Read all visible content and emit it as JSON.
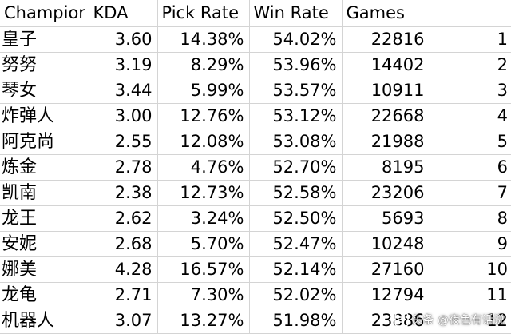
{
  "table": {
    "headers": [
      "Champior",
      "KDA",
      "Pick Rate",
      "Win Rate",
      "Games",
      ""
    ],
    "rows": [
      [
        "皇子",
        "3.60",
        "14.38%",
        "54.02%",
        "22816",
        "1"
      ],
      [
        "努努",
        "3.19",
        "8.29%",
        "53.96%",
        "14402",
        "2"
      ],
      [
        "琴女",
        "3.44",
        "5.99%",
        "53.57%",
        "10911",
        "3"
      ],
      [
        "炸弹人",
        "3.00",
        "12.76%",
        "53.12%",
        "22668",
        "4"
      ],
      [
        "阿克尚",
        "2.55",
        "12.08%",
        "53.08%",
        "21988",
        "5"
      ],
      [
        "炼金",
        "2.78",
        "4.76%",
        "52.70%",
        "8195",
        "6"
      ],
      [
        "凯南",
        "2.38",
        "12.73%",
        "52.58%",
        "23206",
        "7"
      ],
      [
        "龙王",
        "2.62",
        "3.24%",
        "52.50%",
        "5693",
        "8"
      ],
      [
        "安妮",
        "2.68",
        "5.70%",
        "52.47%",
        "10248",
        "9"
      ],
      [
        "娜美",
        "4.28",
        "16.57%",
        "52.14%",
        "27160",
        "10"
      ],
      [
        "龙龟",
        "2.71",
        "7.30%",
        "52.02%",
        "12794",
        "11"
      ],
      [
        "机器人",
        "3.07",
        "13.27%",
        "51.98%",
        "23886",
        "12"
      ]
    ]
  },
  "watermark": {
    "text": "头条 @夜色有话说",
    "icon": "toutiao-logo-icon"
  }
}
